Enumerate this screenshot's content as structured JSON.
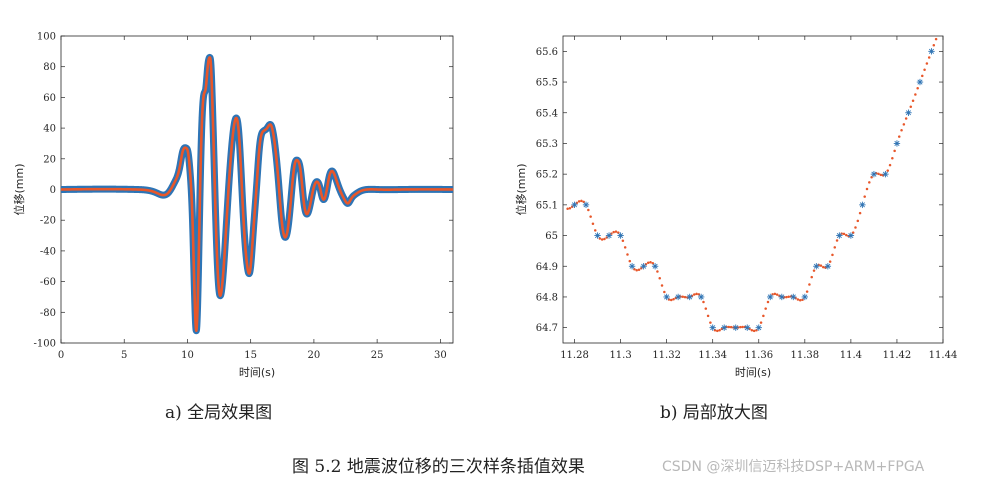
{
  "figure": {
    "caption_a": "a) 全局效果图",
    "caption_b": "b) 局部放大图",
    "figure_caption": "图 5.2  地震波位移的三次样条插值效果",
    "watermark": "CSDN @深圳信迈科技DSP+ARM+FPGA"
  },
  "colors": {
    "sample_marker": "#2E75B6",
    "spline_curve": "#E8572A"
  },
  "chart_data": [
    {
      "id": "a",
      "type": "line",
      "xlabel": "时间(s)",
      "ylabel": "位移(mm)",
      "xlim": [
        0,
        31
      ],
      "ylim": [
        -100,
        100
      ],
      "xticks": [
        0,
        5,
        10,
        15,
        20,
        25,
        30
      ],
      "yticks": [
        100,
        80,
        60,
        40,
        20,
        0,
        -20,
        -40,
        -60,
        -80,
        -100
      ],
      "grid": false,
      "series": [
        {
          "marker": "asterisk",
          "line": "thick",
          "x": [
            0,
            6,
            7.5,
            8.5,
            9.0,
            9.4,
            9.6,
            9.75,
            9.9,
            10.05,
            10.2,
            10.4,
            10.55,
            10.7,
            10.85,
            11.0,
            11.15,
            11.3,
            11.45,
            11.6,
            11.75,
            11.85,
            11.95,
            12.1,
            12.3,
            12.5,
            12.75,
            12.95,
            13.2,
            13.5,
            13.8,
            14.05,
            14.25,
            14.45,
            14.7,
            14.95,
            15.2,
            15.45,
            15.7,
            16.0,
            16.3,
            16.6,
            16.9,
            17.2,
            17.45,
            17.7,
            17.95,
            18.2,
            18.45,
            18.7,
            18.95,
            19.2,
            19.45,
            19.7,
            19.95,
            20.2,
            20.45,
            20.7,
            20.95,
            21.2,
            21.45,
            21.7,
            21.95,
            22.2,
            22.45,
            22.7,
            22.95,
            23.3,
            23.7,
            24.2,
            25,
            27,
            31
          ],
          "y": [
            0,
            0,
            -2,
            -2,
            5,
            15,
            24,
            27,
            27,
            24,
            12,
            -20,
            -65,
            -92,
            -60,
            0,
            45,
            62,
            66,
            80,
            86,
            82,
            62,
            20,
            -35,
            -66,
            -62,
            -40,
            -6,
            28,
            46,
            38,
            10,
            -22,
            -48,
            -53,
            -28,
            0,
            28,
            38,
            40,
            42,
            30,
            5,
            -20,
            -31,
            -25,
            -5,
            15,
            19,
            12,
            -8,
            -16,
            -10,
            0,
            5,
            2,
            -6,
            -3,
            8,
            12,
            8,
            2,
            -3,
            -7,
            -9,
            -6,
            -3,
            -1,
            0,
            0,
            0,
            0
          ]
        }
      ]
    },
    {
      "id": "b",
      "type": "scatter",
      "xlabel": "时间(s)",
      "ylabel": "位移(mm)",
      "xlim": [
        11.275,
        11.44
      ],
      "ylim": [
        64.65,
        65.65
      ],
      "xticks": [
        11.28,
        11.3,
        11.32,
        11.34,
        11.36,
        11.38,
        11.4,
        11.42,
        11.44
      ],
      "yticks": [
        65.6,
        65.5,
        65.4,
        65.3,
        65.2,
        65.1,
        65,
        64.9,
        64.8,
        64.7
      ],
      "grid": false,
      "series": [
        {
          "marker": "asterisk",
          "x": [
            11.28,
            11.285,
            11.29,
            11.295,
            11.3,
            11.305,
            11.31,
            11.315,
            11.32,
            11.325,
            11.33,
            11.335,
            11.34,
            11.345,
            11.35,
            11.355,
            11.36,
            11.365,
            11.37,
            11.375,
            11.38,
            11.385,
            11.39,
            11.395,
            11.4,
            11.405,
            11.41,
            11.415,
            11.42,
            11.425,
            11.43,
            11.435
          ],
          "y": [
            65.1,
            65.1,
            65.0,
            65.0,
            65.0,
            64.9,
            64.9,
            64.9,
            64.8,
            64.8,
            64.8,
            64.8,
            64.7,
            64.7,
            64.7,
            64.7,
            64.7,
            64.8,
            64.8,
            64.8,
            64.8,
            64.9,
            64.9,
            65.0,
            65.0,
            65.1,
            65.2,
            65.2,
            65.3,
            65.4,
            65.5,
            65.6
          ]
        },
        {
          "marker": "dot",
          "x_step": 0.001,
          "x_range": [
            11.277,
            11.437
          ]
        }
      ]
    }
  ]
}
